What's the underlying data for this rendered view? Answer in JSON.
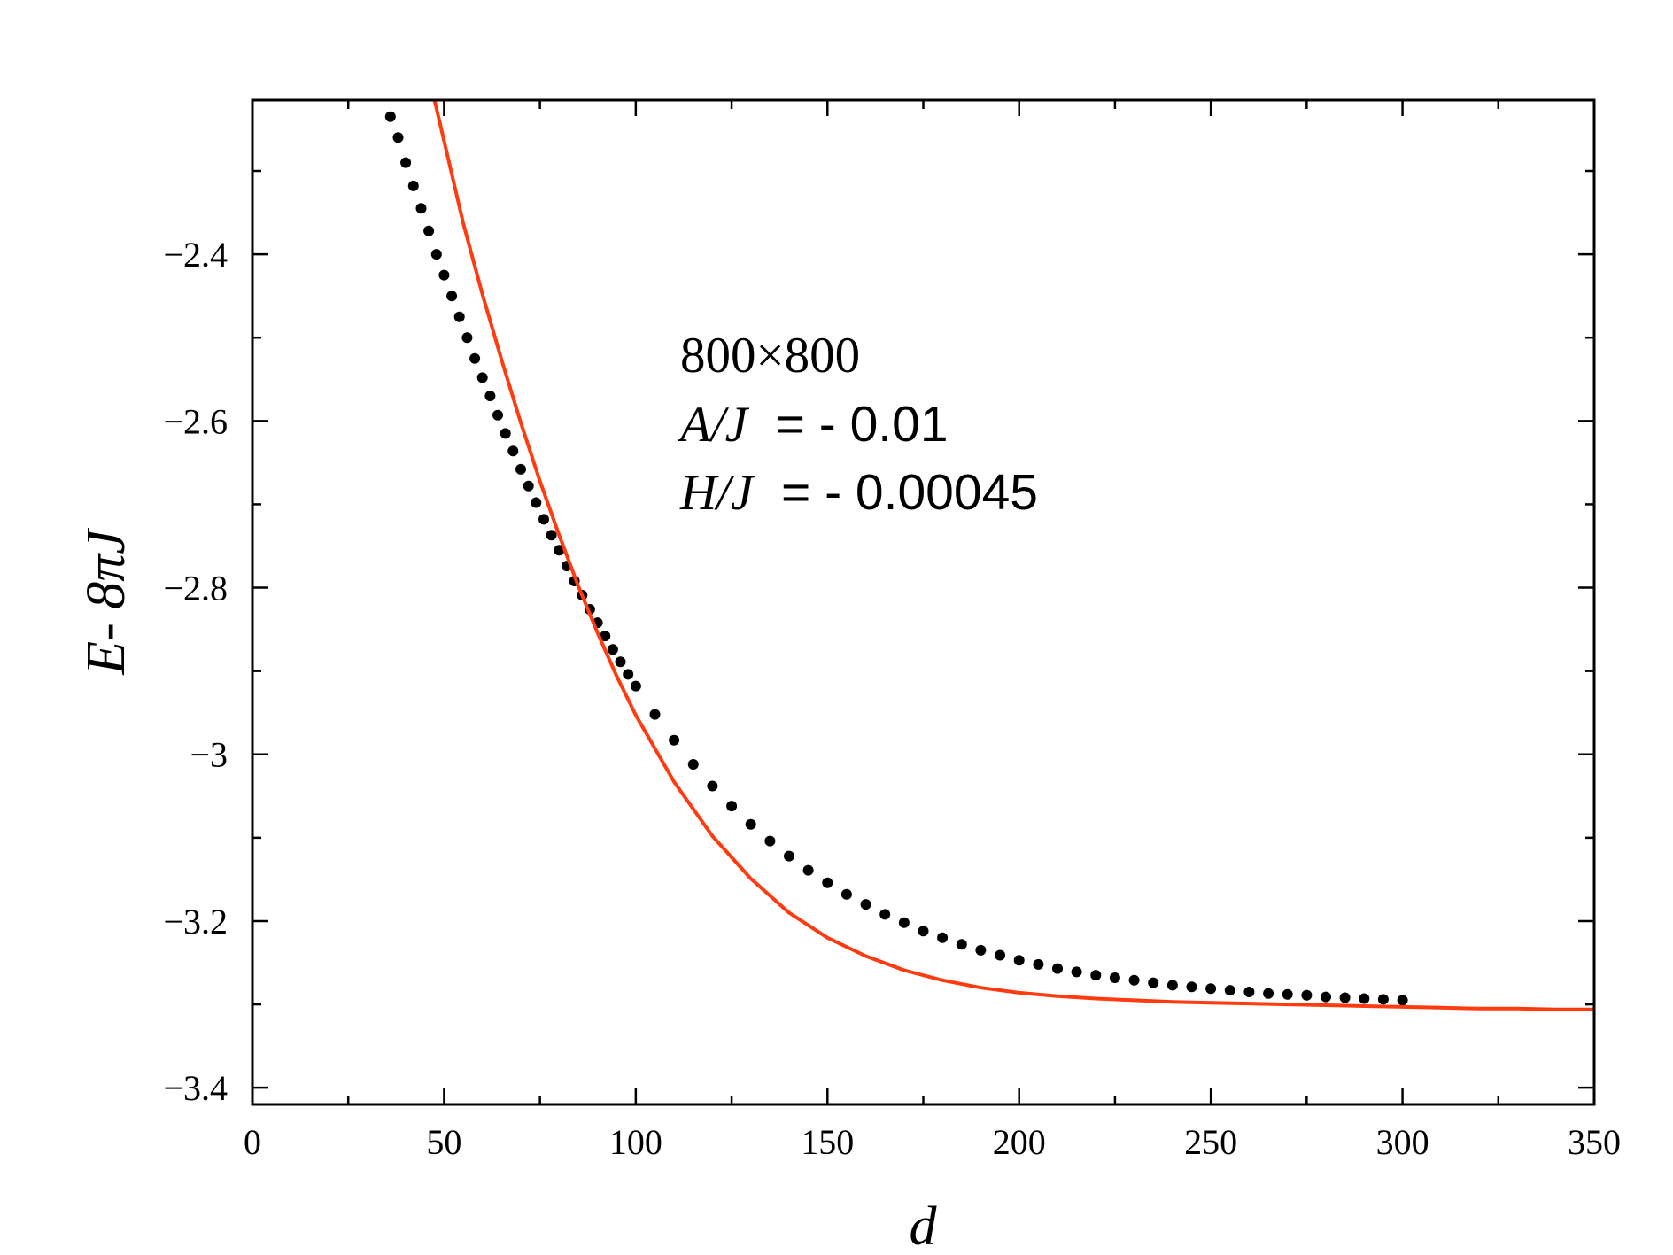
{
  "chart_data": {
    "type": "scatter",
    "xlabel": "d",
    "ylabel": "E- 8πJ",
    "xlim": [
      0,
      350
    ],
    "ylim": [
      -3.42,
      -2.215
    ],
    "x_ticks": [
      0,
      50,
      100,
      150,
      200,
      250,
      300,
      350
    ],
    "x_tick_labels": [
      "0",
      "50",
      "100",
      "150",
      "200",
      "250",
      "300",
      "350"
    ],
    "y_ticks": [
      -2.4,
      -2.6,
      -2.8,
      -3,
      -3.2,
      -3.4
    ],
    "y_tick_labels": [
      "−2.4",
      "−2.6",
      "−2.8",
      "−3",
      "−3.2",
      "−3.4"
    ],
    "grid": false,
    "annotations": [
      "800×800",
      "A/J  = - 0.01",
      "H/J  = - 0.00045"
    ],
    "series": [
      {
        "kind": "points",
        "color": "#000000",
        "x": [
          36,
          38,
          40,
          42,
          44,
          46,
          48,
          50,
          52,
          54,
          56,
          58,
          60,
          62,
          64,
          66,
          68,
          70,
          72,
          74,
          76,
          78,
          80,
          82,
          84,
          86,
          88,
          90,
          92,
          94,
          96,
          98,
          100,
          105,
          110,
          115,
          120,
          125,
          130,
          135,
          140,
          145,
          150,
          155,
          160,
          165,
          170,
          175,
          180,
          185,
          190,
          195,
          200,
          205,
          210,
          215,
          220,
          225,
          230,
          235,
          240,
          245,
          250,
          255,
          260,
          265,
          270,
          275,
          280,
          285,
          290,
          295,
          300
        ],
        "y": [
          -2.235,
          -2.26,
          -2.29,
          -2.318,
          -2.345,
          -2.372,
          -2.4,
          -2.425,
          -2.45,
          -2.475,
          -2.5,
          -2.525,
          -2.548,
          -2.57,
          -2.593,
          -2.615,
          -2.636,
          -2.658,
          -2.678,
          -2.698,
          -2.718,
          -2.737,
          -2.755,
          -2.774,
          -2.792,
          -2.809,
          -2.826,
          -2.842,
          -2.858,
          -2.874,
          -2.889,
          -2.904,
          -2.918,
          -2.952,
          -2.983,
          -3.012,
          -3.038,
          -3.062,
          -3.084,
          -3.104,
          -3.122,
          -3.139,
          -3.154,
          -3.168,
          -3.18,
          -3.192,
          -3.202,
          -3.212,
          -3.22,
          -3.228,
          -3.235,
          -3.241,
          -3.247,
          -3.252,
          -3.257,
          -3.261,
          -3.265,
          -3.268,
          -3.271,
          -3.274,
          -3.277,
          -3.279,
          -3.281,
          -3.283,
          -3.285,
          -3.287,
          -3.288,
          -3.289,
          -3.291,
          -3.292,
          -3.293,
          -3.294,
          -3.295
        ]
      },
      {
        "kind": "line",
        "color": "#ff3b0f",
        "x": [
          47.5,
          50,
          55,
          60,
          65,
          70,
          75,
          80,
          85,
          90,
          95,
          100,
          110,
          120,
          130,
          140,
          150,
          160,
          170,
          180,
          190,
          200,
          210,
          220,
          230,
          240,
          250,
          260,
          270,
          280,
          290,
          300,
          310,
          320,
          330,
          340,
          350
        ],
        "y": [
          -2.215,
          -2.264,
          -2.363,
          -2.448,
          -2.527,
          -2.602,
          -2.672,
          -2.737,
          -2.798,
          -2.854,
          -2.906,
          -2.953,
          -3.033,
          -3.098,
          -3.149,
          -3.19,
          -3.22,
          -3.242,
          -3.259,
          -3.271,
          -3.28,
          -3.286,
          -3.29,
          -3.293,
          -3.295,
          -3.297,
          -3.298,
          -3.299,
          -3.3,
          -3.301,
          -3.302,
          -3.303,
          -3.304,
          -3.305,
          -3.305,
          -3.306,
          -3.306
        ]
      }
    ]
  }
}
